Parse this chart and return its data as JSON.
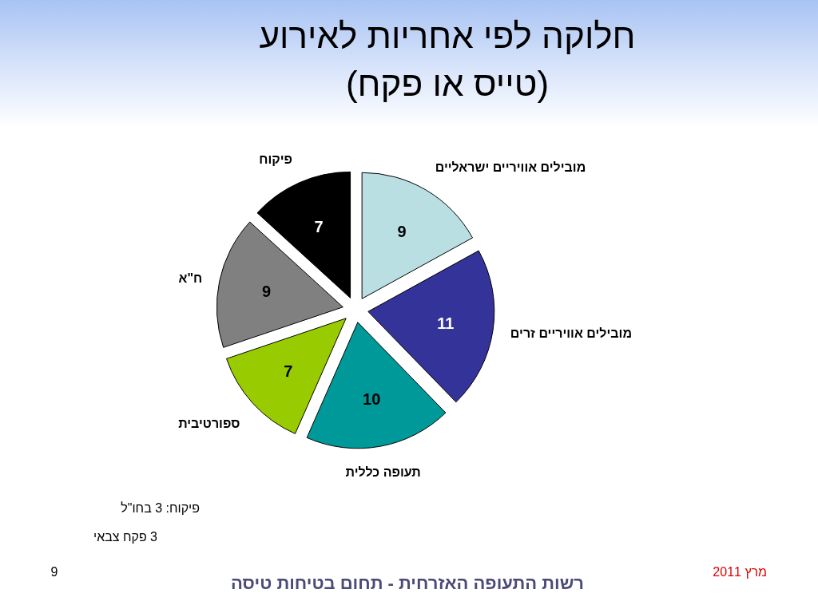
{
  "chart_data": {
    "type": "pie",
    "title": "חלוקה לפי אחריות לאירוע",
    "subtitle": "(טייס או פקח)",
    "categories": [
      "מובילים אוויריים ישראליים",
      "מובילים אוויריים זרים",
      "תעופה כללית",
      "ספורטיבית",
      "ח\"א",
      "פיקוח"
    ],
    "values": [
      9,
      11,
      10,
      7,
      9,
      7
    ],
    "colors": [
      "#b9dfe3",
      "#333399",
      "#009999",
      "#99cc00",
      "#808080",
      "#000000"
    ],
    "data_labels": true,
    "annotations": [
      "פיקוח: 3 בחו\"ל",
      "3 פקח צבאי",
      "9",
      "רשות התעופה האזרחית - תחום בטיחות טיסה",
      "מרץ 2011"
    ]
  }
}
